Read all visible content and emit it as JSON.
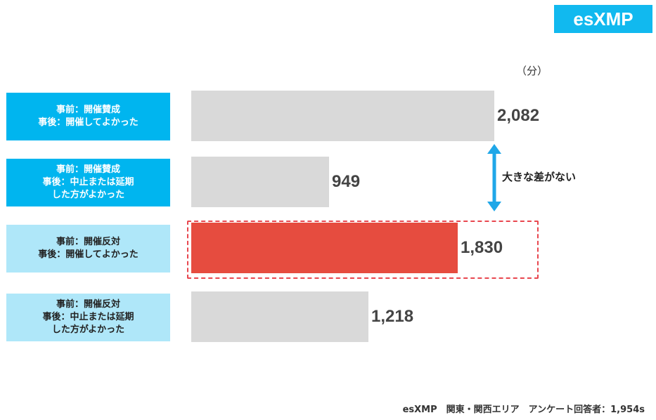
{
  "brand": {
    "logo_text": "esXMP"
  },
  "chart_data": {
    "type": "bar",
    "orientation": "horizontal",
    "unit": "（分）",
    "categories": [
      [
        "事前：開催賛成",
        "事後：開催してよかった"
      ],
      [
        "事前：開催賛成",
        "事後：中止または延期",
        "した方がよかった"
      ],
      [
        "事前：開催反対",
        "事後：開催してよかった"
      ],
      [
        "事前：開催反対",
        "事後：中止または延期",
        "した方がよかった"
      ]
    ],
    "values": [
      2082,
      949,
      1830,
      1218
    ],
    "value_labels": [
      "2,082",
      "949",
      "1,830",
      "1,218"
    ],
    "highlight_index": 2,
    "xlim": [
      0,
      2082
    ],
    "annotation": "大きな差がない",
    "colors": {
      "bar_default": "#d9d9d9",
      "bar_highlight": "#e64c3f",
      "label_strong": "#00b5ef",
      "label_light": "#afe7f9",
      "arrow": "#1fa7e8"
    }
  },
  "footer": "esXMP　関東・関西エリア　アンケート回答者：1,954s"
}
